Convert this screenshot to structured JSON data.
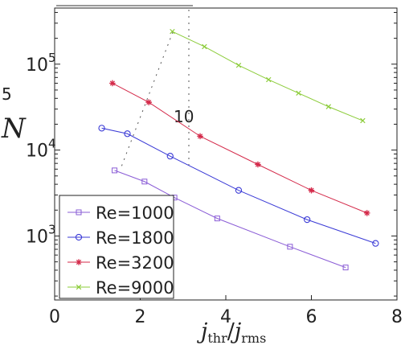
{
  "chart_data": {
    "type": "line",
    "title": "",
    "xlabel": "j",
    "xlabel_sub": "thr",
    "xlabel_sep": "/",
    "xlabel2": "j",
    "xlabel2_sub": "rms",
    "ylabel": "N",
    "y_scale": "log",
    "xlim": [
      0,
      8
    ],
    "ylim": [
      180,
      450000
    ],
    "x_ticks": [
      {
        "value": 0,
        "label": "0"
      },
      {
        "value": 2,
        "label": "2"
      },
      {
        "value": 4,
        "label": "4"
      },
      {
        "value": 6,
        "label": "6"
      },
      {
        "value": 8,
        "label": "8"
      }
    ],
    "y_ticks": [
      {
        "value": 1000,
        "base": "10",
        "exp": "3"
      },
      {
        "value": 10000,
        "base": "10",
        "exp": "4"
      },
      {
        "value": 100000,
        "base": "10",
        "exp": "5"
      }
    ],
    "grid": false,
    "legend_position": "bottom-left",
    "series": [
      {
        "name": "Re=1000",
        "color": "#8a5cd6",
        "marker": "square",
        "x": [
          1.4,
          2.1,
          2.8,
          3.8,
          5.5,
          6.8
        ],
        "y": [
          5800,
          4300,
          2800,
          1600,
          750,
          430
        ]
      },
      {
        "name": "Re=1800",
        "color": "#3a3ad6",
        "marker": "circle",
        "x": [
          1.1,
          1.7,
          2.7,
          4.3,
          5.9,
          7.5
        ],
        "y": [
          18000,
          15500,
          8500,
          3400,
          1550,
          820
        ]
      },
      {
        "name": "Re=3200",
        "color": "#d42a4a",
        "marker": "star",
        "x": [
          1.35,
          2.2,
          3.4,
          4.75,
          6.0,
          7.3
        ],
        "y": [
          60000,
          36000,
          14500,
          6800,
          3400,
          1850
        ]
      },
      {
        "name": "Re=9000",
        "color": "#8ccc3a",
        "marker": "x",
        "x": [
          2.75,
          3.5,
          4.3,
          5.0,
          5.7,
          6.4,
          7.2
        ],
        "y": [
          240000,
          160000,
          97000,
          66000,
          46000,
          32000,
          22000
        ]
      }
    ],
    "ghost_labels": [
      "5",
      "10"
    ]
  }
}
